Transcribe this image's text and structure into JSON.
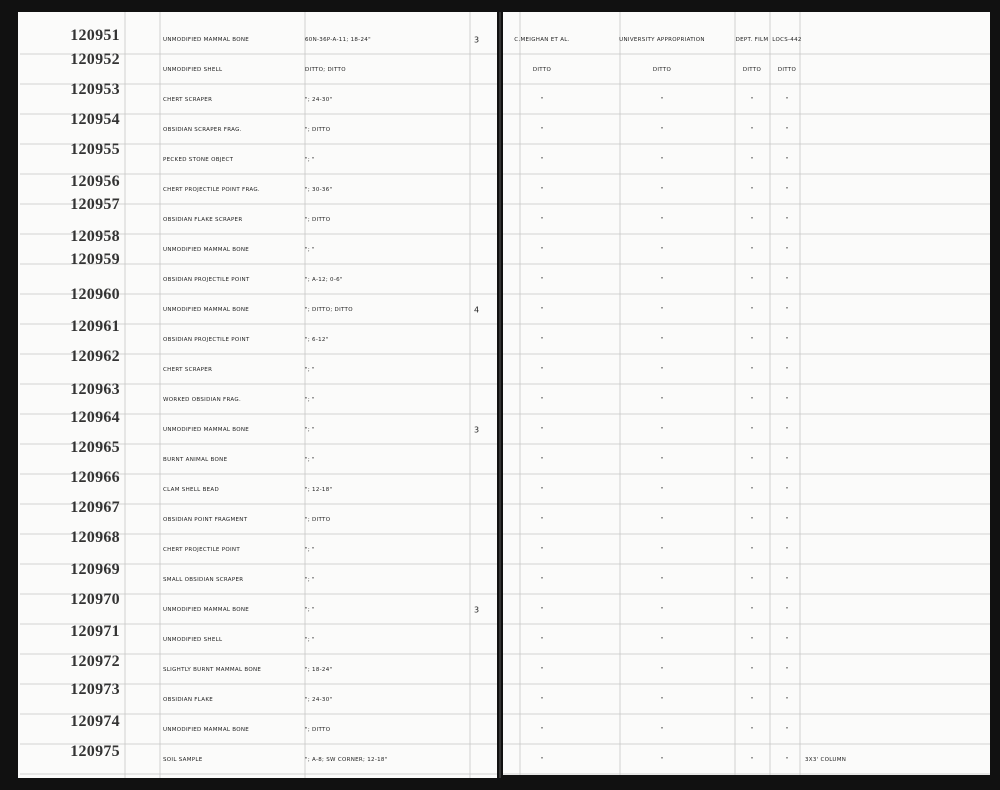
{
  "ledger": {
    "rows": [
      {
        "number": "120951",
        "description": "UNMODIFIED MAMMAL BONE",
        "location": "60N-36P-A-11; 18-24\"",
        "count": "3",
        "collector": "C.MEIGHAN ET AL.",
        "acquisition": "UNIVERSITY APPROPRIATION",
        "dept": "DEPT. FILM",
        "reference": "LOCS-442"
      },
      {
        "number": "120952",
        "description": "UNMODIFIED SHELL",
        "location": "DITTO; DITTO",
        "collector": "DITTO",
        "acquisition": "DITTO",
        "dept": "DITTO",
        "reference": "DITTO"
      },
      {
        "number": "120953",
        "description": "CHERT SCRAPER",
        "location": "\"; 24-30\"",
        "collector": "\"",
        "acquisition": "\"",
        "dept": "\"",
        "reference": "\""
      },
      {
        "number": "120954",
        "description": "OBSIDIAN SCRAPER FRAG.",
        "location": "\"; DITTO",
        "collector": "\"",
        "acquisition": "\"",
        "dept": "\"",
        "reference": "\""
      },
      {
        "number": "120955",
        "description": "PECKED STONE OBJECT",
        "location": "\"; \"",
        "collector": "\"",
        "acquisition": "\"",
        "dept": "\"",
        "reference": "\""
      },
      {
        "number": "120956",
        "description": "CHERT PROJECTILE POINT FRAG.",
        "location": "\"; 30-36\"",
        "collector": "\"",
        "acquisition": "\"",
        "dept": "\"",
        "reference": "\""
      },
      {
        "number": "120957",
        "description": "OBSIDIAN FLAKE SCRAPER",
        "location": "\"; DITTO",
        "collector": "\"",
        "acquisition": "\"",
        "dept": "\"",
        "reference": "\""
      },
      {
        "number": "120958",
        "description": "UNMODIFIED MAMMAL BONE",
        "location": "\"; \"",
        "collector": "\"",
        "acquisition": "\"",
        "dept": "\"",
        "reference": "\""
      },
      {
        "number": "120959",
        "description": "OBSIDIAN PROJECTILE POINT",
        "location": "\"; A-12; 0-6\"",
        "collector": "\"",
        "acquisition": "\"",
        "dept": "\"",
        "reference": "\""
      },
      {
        "number": "120960",
        "description": "UNMODIFIED MAMMAL BONE",
        "location": "\"; DITTO; DITTO",
        "count": "4",
        "collector": "\"",
        "acquisition": "\"",
        "dept": "\"",
        "reference": "\""
      },
      {
        "number": "120961",
        "description": "OBSIDIAN PROJECTILE POINT",
        "location": "\"; 6-12\"",
        "collector": "\"",
        "acquisition": "\"",
        "dept": "\"",
        "reference": "\""
      },
      {
        "number": "120962",
        "description": "CHERT SCRAPER",
        "location": "\"; \"",
        "collector": "\"",
        "acquisition": "\"",
        "dept": "\"",
        "reference": "\""
      },
      {
        "number": "120963",
        "description": "WORKED OBSIDIAN FRAG.",
        "location": "\"; \"",
        "collector": "\"",
        "acquisition": "\"",
        "dept": "\"",
        "reference": "\""
      },
      {
        "number": "120964",
        "description": "UNMODIFIED MAMMAL BONE",
        "location": "\"; \"",
        "count": "3",
        "collector": "\"",
        "acquisition": "\"",
        "dept": "\"",
        "reference": "\""
      },
      {
        "number": "120965",
        "description": "BURNT ANIMAL BONE",
        "location": "\"; \"",
        "collector": "\"",
        "acquisition": "\"",
        "dept": "\"",
        "reference": "\""
      },
      {
        "number": "120966",
        "description": "CLAM SHELL BEAD",
        "location": "\"; 12-18\"",
        "collector": "\"",
        "acquisition": "\"",
        "dept": "\"",
        "reference": "\""
      },
      {
        "number": "120967",
        "description": "OBSIDIAN POINT FRAGMENT",
        "location": "\"; DITTO",
        "collector": "\"",
        "acquisition": "\"",
        "dept": "\"",
        "reference": "\""
      },
      {
        "number": "120968",
        "description": "CHERT PROJECTILE POINT",
        "location": "\"; \"",
        "collector": "\"",
        "acquisition": "\"",
        "dept": "\"",
        "reference": "\""
      },
      {
        "number": "120969",
        "description": "SMALL OBSIDIAN SCRAPER",
        "location": "\"; \"",
        "collector": "\"",
        "acquisition": "\"",
        "dept": "\"",
        "reference": "\""
      },
      {
        "number": "120970",
        "description": "UNMODIFIED MAMMAL BONE",
        "location": "\"; \"",
        "count": "3",
        "collector": "\"",
        "acquisition": "\"",
        "dept": "\"",
        "reference": "\""
      },
      {
        "number": "120971",
        "description": "UNMODIFIED SHELL",
        "location": "\"; \"",
        "collector": "\"",
        "acquisition": "\"",
        "dept": "\"",
        "reference": "\""
      },
      {
        "number": "120972",
        "description": "SLIGHTLY BURNT MAMMAL BONE",
        "location": "\"; 18-24\"",
        "collector": "\"",
        "acquisition": "\"",
        "dept": "\"",
        "reference": "\""
      },
      {
        "number": "120973",
        "description": "OBSIDIAN FLAKE",
        "location": "\"; 24-30\"",
        "collector": "\"",
        "acquisition": "\"",
        "dept": "\"",
        "reference": "\""
      },
      {
        "number": "120974",
        "description": "UNMODIFIED MAMMAL BONE",
        "location": "\"; DITTO",
        "collector": "\"",
        "acquisition": "\"",
        "dept": "\"",
        "reference": "\""
      },
      {
        "number": "120975",
        "description": "SOIL SAMPLE",
        "location": "\"; A-8; SW CORNER; 12-18\"",
        "collector": "\"",
        "acquisition": "\"",
        "dept": "\"",
        "reference": "\"",
        "remarks": "3X3' COLUMN"
      }
    ]
  }
}
